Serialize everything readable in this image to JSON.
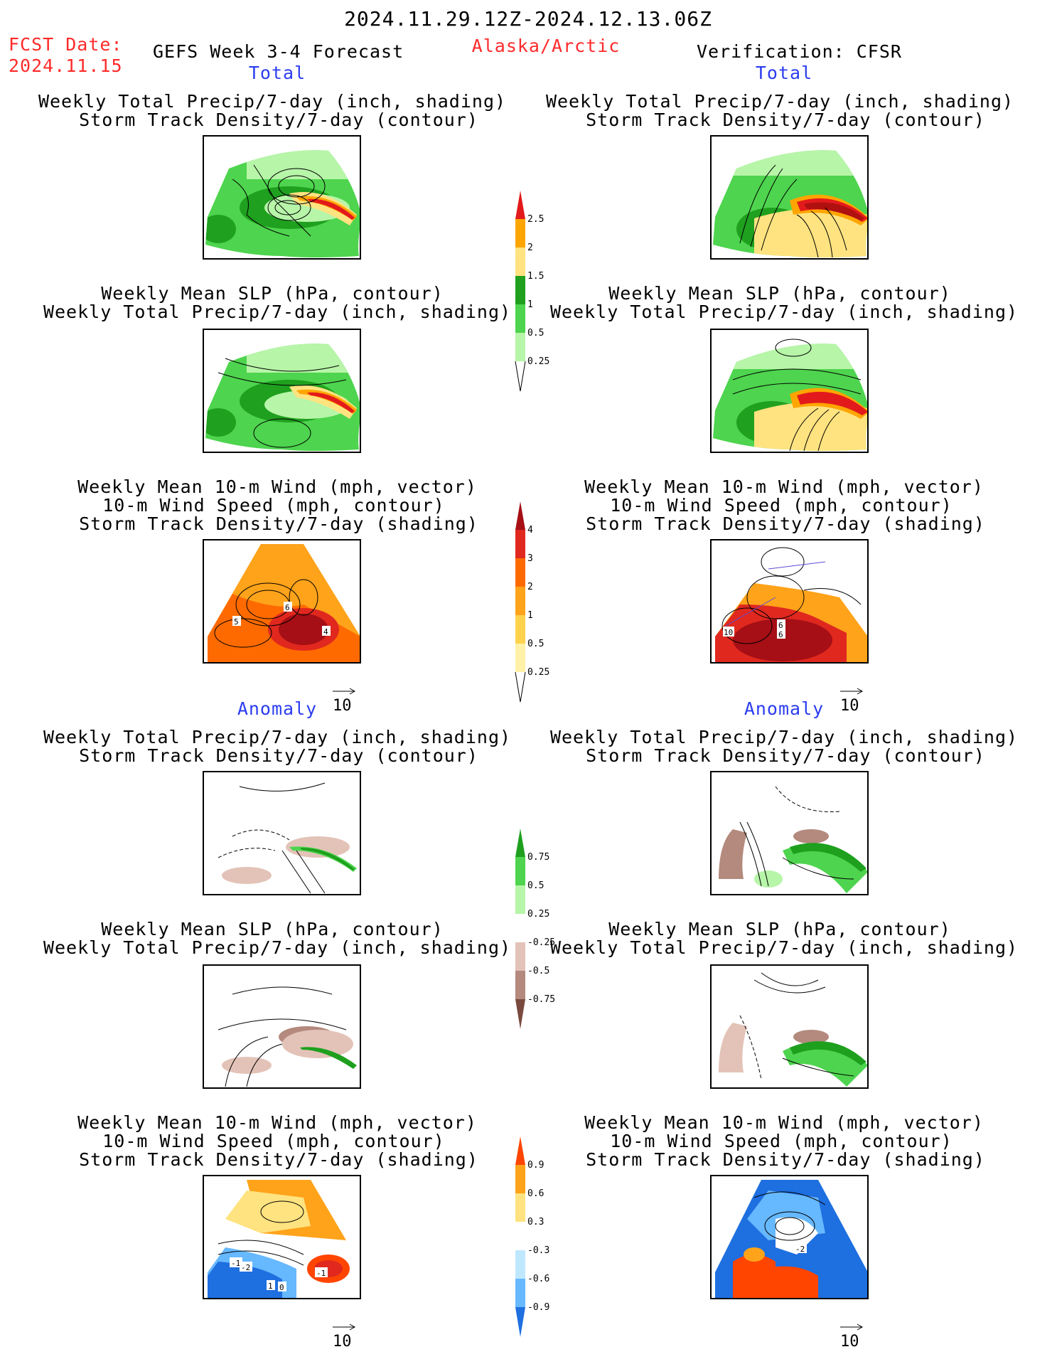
{
  "header": {
    "period": "2024.11.29.12Z-2024.12.13.06Z",
    "fcst_label": "FCST Date:",
    "fcst_date": "2024.11.15",
    "model": "GEFS Week 3-4 Forecast",
    "region": "Alaska/Arctic",
    "verification": "Verification: CFSR"
  },
  "sections": {
    "total": "Total",
    "anomaly": "Anomaly"
  },
  "titles": {
    "precip_track": [
      "Weekly Total Precip/7-day (inch, shading)",
      "Storm Track Density/7-day (contour)"
    ],
    "slp_precip": [
      "Weekly Mean SLP (hPa, contour)",
      "Weekly Total Precip/7-day (inch, shading)"
    ],
    "wind_track": [
      "Weekly Mean 10-m Wind (mph, vector)",
      "10-m Wind Speed (mph, contour)",
      "Storm Track Density/7-day (shading)"
    ]
  },
  "vector_ref": "10",
  "colorbars": {
    "precip_total": {
      "labels": [
        "2.5",
        "2",
        "1.5",
        "1",
        "0.5",
        "0.25"
      ],
      "colors": [
        "#e31a1c",
        "#ffa500",
        "#ffe380",
        "#1fa01f",
        "#4ed44e",
        "#b7f5a8"
      ]
    },
    "track_total": {
      "labels": [
        "4",
        "3",
        "2",
        "1",
        "0.5",
        "0.25"
      ],
      "colors": [
        "#a50f15",
        "#e0281f",
        "#ff6a00",
        "#ffa31a",
        "#ffd24d",
        "#fff2a8"
      ]
    },
    "precip_anom": {
      "labels": [
        "0.75",
        "0.5",
        "0.25",
        "-0.25",
        "-0.5",
        "-0.75"
      ],
      "colors": [
        "#1ea01e",
        "#4ed44e",
        "#b7f5a8",
        "#ffffff",
        "#e3c3b8",
        "#b38a7d",
        "#7a4a3e"
      ]
    },
    "track_anom": {
      "labels": [
        "0.9",
        "0.6",
        "0.3",
        "-0.3",
        "-0.6",
        "-0.9"
      ],
      "colors": [
        "#ff4500",
        "#ffa31a",
        "#ffe380",
        "#ffffff",
        "#bfe8ff",
        "#66b8ff",
        "#1e6fe0"
      ]
    }
  },
  "panel_labels": {
    "fc_wind_total": [
      "5",
      "6",
      "4"
    ],
    "ob_wind_total": [
      "10",
      "6",
      "6"
    ],
    "fc_wind_anom": [
      "-1",
      "-2",
      "1",
      "0",
      "-1"
    ],
    "ob_wind_anom": [
      "-2"
    ]
  },
  "colors": {
    "title_red": "#ff2b2b",
    "section_blue": "#2b3df0"
  }
}
